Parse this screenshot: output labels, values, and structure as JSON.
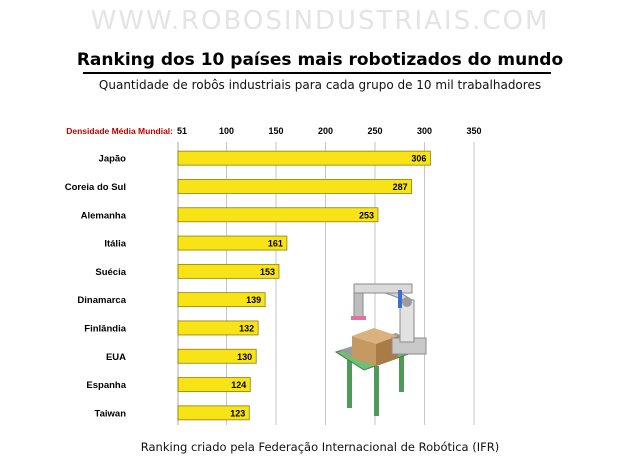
{
  "watermark": "WWW.ROBOSINDUSTRIAIS.COM",
  "subtitle": "Quantidade de robôs industriais para cada grupo de 10 mil trabalhadores",
  "footer": "Ranking criado pela Federação Internacional de Robótica (IFR)",
  "colors": {
    "bar_fill": "#f7e316",
    "bar_stroke": "#8f8200",
    "grid": "#b8b8b8",
    "mean_label": "#c00000"
  },
  "chart_data": {
    "type": "bar",
    "orientation": "horizontal",
    "title": "Ranking dos 10 países mais robotizados do mundo",
    "categories": [
      "Japão",
      "Coreia do Sul",
      "Alemanha",
      "Itália",
      "Suécia",
      "Dinamarca",
      "Finlândia",
      "EUA",
      "Espanha",
      "Taiwan"
    ],
    "values": [
      306,
      287,
      253,
      161,
      153,
      139,
      132,
      130,
      124,
      123
    ],
    "xlim": [
      51,
      350
    ],
    "ticks": [
      {
        "value": 51,
        "label": "51"
      },
      {
        "value": 100,
        "label": "100"
      },
      {
        "value": 150,
        "label": "150"
      },
      {
        "value": 200,
        "label": "200"
      },
      {
        "value": 250,
        "label": "250"
      },
      {
        "value": 300,
        "label": "300"
      },
      {
        "value": 350,
        "label": "350"
      }
    ],
    "mean_label": "Densidade Média Mundial:",
    "data_labels": true,
    "grid": true
  }
}
